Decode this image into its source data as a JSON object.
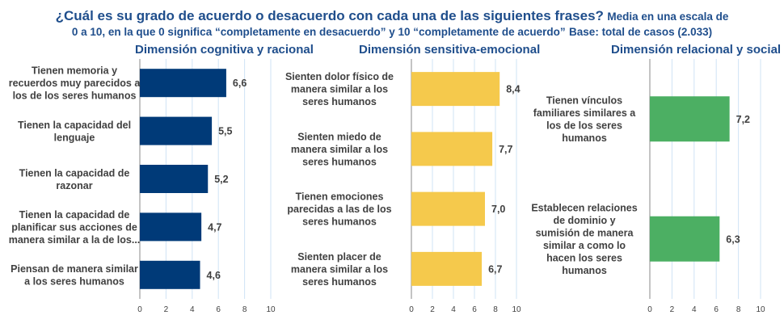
{
  "header": {
    "title_main": "¿Cuál es su grado de acuerdo o desacuerdo con cada una de las siguientes frases?",
    "title_note_a": "Media en una escala de",
    "title_line2": "0 a 10, en la que 0 significa “completamente en desacuerdo” y 10 “completamente de acuerdo”",
    "title_base": "Base: total de casos (2.033)"
  },
  "colors": {
    "blue": "#003a78",
    "yellow": "#f5c94c",
    "green": "#4caf63",
    "title": "#1f4e8c",
    "grid": "#cfe3f5"
  },
  "chart_data": [
    {
      "type": "bar",
      "orientation": "horizontal",
      "title": "Dimensión cognitiva y racional",
      "color": "#003a78",
      "categories": [
        "Tienen memoria y recuerdos muy parecidos a los de los seres humanos",
        "Tienen la capacidad del lenguaje",
        "Tienen la capacidad de razonar",
        "Tienen la capacidad de planificar sus acciones de manera similar a la de los...",
        "Piensan de manera similar a los seres humanos"
      ],
      "category_lines": [
        [
          "Tienen memoria y",
          "recuerdos muy parecidos a",
          "los de los seres humanos"
        ],
        [
          "Tienen la capacidad del",
          "lenguaje"
        ],
        [
          "Tienen la capacidad de",
          "razonar"
        ],
        [
          "Tienen la capacidad de",
          "planificar sus acciones de",
          "manera similar a la de los..."
        ],
        [
          "Piensan de manera similar",
          "a los seres humanos"
        ]
      ],
      "values": [
        6.6,
        5.5,
        5.2,
        4.7,
        4.6
      ],
      "labels": [
        "6,6",
        "5,5",
        "5,2",
        "4,7",
        "4,6"
      ],
      "xlim": [
        0,
        10
      ],
      "ticks": [
        "0",
        "2",
        "4",
        "6",
        "8",
        "10"
      ],
      "grid": true
    },
    {
      "type": "bar",
      "orientation": "horizontal",
      "title": "Dimensión sensitiva-emocional",
      "color": "#f5c94c",
      "categories": [
        "Sienten dolor físico de manera similar a los seres humanos",
        "Sienten miedo de manera similar a los seres humanos",
        "Tienen emociones parecidas a las de los seres humanos",
        "Sienten placer de manera similar a los seres humanos"
      ],
      "category_lines": [
        [
          "Sienten dolor físico de",
          "manera similar a los",
          "seres humanos"
        ],
        [
          "Sienten miedo de",
          "manera similar a los",
          "seres humanos"
        ],
        [
          "Tienen emociones",
          "parecidas a las de los",
          "seres humanos"
        ],
        [
          "Sienten placer de",
          "manera similar a los",
          "seres humanos"
        ]
      ],
      "values": [
        8.4,
        7.7,
        7.0,
        6.7
      ],
      "labels": [
        "8,4",
        "7,7",
        "7,0",
        "6,7"
      ],
      "xlim": [
        0,
        10
      ],
      "ticks": [
        "0",
        "2",
        "4",
        "6",
        "8",
        "10"
      ],
      "grid": true
    },
    {
      "type": "bar",
      "orientation": "horizontal",
      "title": "Dimensión relacional y social",
      "color": "#4caf63",
      "categories": [
        "Tienen vínculos familiares similares a los de los seres humanos",
        "Establecen relaciones de dominio y sumisión de manera similar a como lo hacen los seres humanos"
      ],
      "category_lines": [
        [
          "Tienen vínculos",
          "familiares similares a",
          "los de los seres",
          "humanos"
        ],
        [
          "Establecen relaciones",
          "de dominio y",
          "sumisión de manera",
          "similar a como lo",
          "hacen los seres",
          "humanos"
        ]
      ],
      "values": [
        7.2,
        6.3
      ],
      "labels": [
        "7,2",
        "6,3"
      ],
      "xlim": [
        0,
        10
      ],
      "ticks": [
        "0",
        "2",
        "4",
        "6",
        "8",
        "10"
      ],
      "grid": true
    }
  ]
}
